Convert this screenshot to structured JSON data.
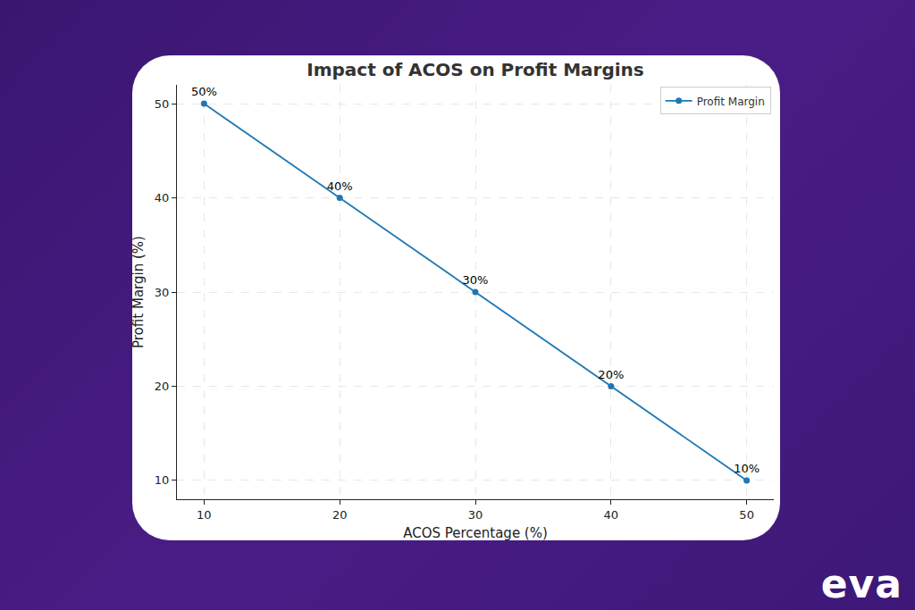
{
  "chart_data": {
    "type": "line",
    "title": "Impact of ACOS on Profit Margins",
    "x_label": "ACOS Percentage (%)",
    "y_label": "Profit Margin (%)",
    "x": [
      10,
      20,
      30,
      40,
      50
    ],
    "series": [
      {
        "name": "Profit Margin",
        "color": "#1f77b4",
        "marker": "circle",
        "line_style": "solid",
        "values": [
          50,
          40,
          30,
          20,
          10
        ],
        "value_labels": [
          "50%",
          "40%",
          "30%",
          "20%",
          "10%"
        ]
      }
    ],
    "xlim": [
      8,
      52
    ],
    "xticks": [
      10,
      20,
      30,
      40,
      50
    ],
    "ylim": [
      8,
      52
    ],
    "yticks": [
      10,
      20,
      30,
      40,
      50
    ],
    "grid": true,
    "legend": "upper right",
    "data_labels": true
  },
  "logo": "eva"
}
